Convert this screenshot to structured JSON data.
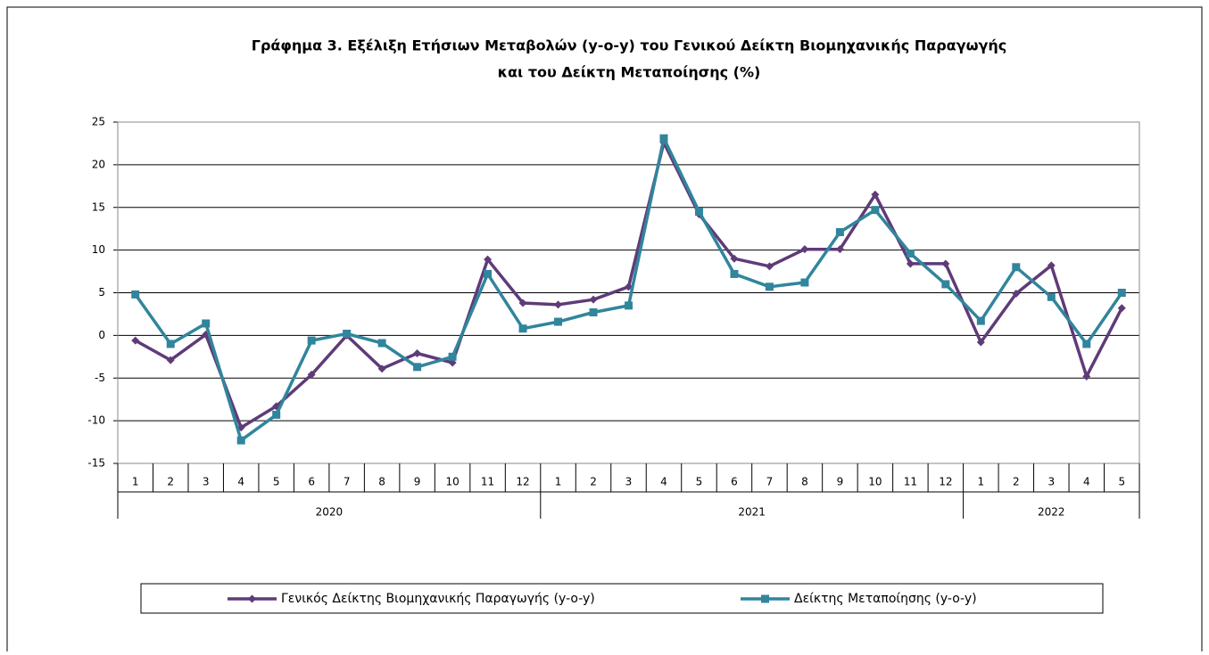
{
  "chart_data": {
    "type": "line",
    "title": [
      "Γράφημα 3. Εξέλιξη Ετήσιων Μεταβολών (y-o-y) του Γενικού Δείκτη Βιομηχανικής Παραγωγής",
      "και του Δείκτη Μεταποίησης (%)"
    ],
    "categories": [
      "1",
      "2",
      "3",
      "4",
      "5",
      "6",
      "7",
      "8",
      "9",
      "10",
      "11",
      "12",
      "1",
      "2",
      "3",
      "4",
      "5",
      "6",
      "7",
      "8",
      "9",
      "10",
      "11",
      "12",
      "1",
      "2",
      "3",
      "4",
      "5"
    ],
    "category_groups": [
      "2020",
      "2021",
      "2022"
    ],
    "series": [
      {
        "name": "Γενικός Δείκτης Βιομηχανικής Παραγωγής (y-o-y)",
        "color": "#5f3b78",
        "marker": "diamond",
        "values": [
          -0.6,
          -2.9,
          0.1,
          -10.8,
          -8.3,
          -4.6,
          0.0,
          -3.9,
          -2.1,
          -3.2,
          8.9,
          3.8,
          3.6,
          4.2,
          5.7,
          22.6,
          14.2,
          9.0,
          8.1,
          10.1,
          10.1,
          16.5,
          8.4,
          8.4,
          -0.8,
          4.9,
          8.2,
          -4.8,
          3.2
        ]
      },
      {
        "name": "Δείκτης Μεταποίησης (y-o-y)",
        "color": "#31859c",
        "marker": "square",
        "values": [
          4.8,
          -1.0,
          1.4,
          -12.3,
          -9.3,
          -0.6,
          0.2,
          -0.9,
          -3.7,
          -2.5,
          7.2,
          0.8,
          1.6,
          2.7,
          3.5,
          23.1,
          14.5,
          7.2,
          5.7,
          6.2,
          12.1,
          14.7,
          9.6,
          6.0,
          1.7,
          8.0,
          4.5,
          -1.0,
          5.0
        ]
      }
    ],
    "ylim": [
      -15,
      25
    ],
    "yticks": [
      -15,
      -10,
      -5,
      0,
      5,
      10,
      15,
      20,
      25
    ],
    "grid": true
  }
}
